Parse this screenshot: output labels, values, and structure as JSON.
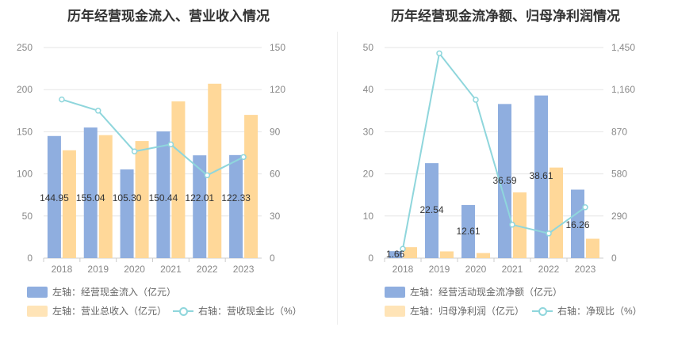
{
  "chart_data": [
    {
      "type": "bar",
      "title": "历年经营现金流入、营业收入情况",
      "categories": [
        "2018",
        "2019",
        "2020",
        "2021",
        "2022",
        "2023"
      ],
      "left_axis": {
        "ylim": [
          0,
          250
        ],
        "ticks": [
          "0",
          "50",
          "100",
          "150",
          "200",
          "250"
        ]
      },
      "right_axis": {
        "ylim": [
          0,
          150
        ],
        "ticks": [
          "0",
          "30",
          "60",
          "90",
          "120",
          "150"
        ]
      },
      "series": [
        {
          "name": "左轴：经营现金流入（亿元）",
          "axis": "left",
          "type": "bar",
          "color": "#8faedf",
          "values": [
            144.95,
            155.04,
            105.3,
            150.44,
            122.01,
            122.33
          ],
          "labels": [
            "144.95",
            "155.04",
            "105.30",
            "150.44",
            "122.01",
            "122.33"
          ]
        },
        {
          "name": "左轴：营业总收入（亿元）",
          "axis": "left",
          "type": "bar",
          "color": "#ffd899",
          "values": [
            128,
            146,
            139,
            186,
            207,
            170
          ]
        },
        {
          "name": "右轴：营收现金比（%）",
          "axis": "right",
          "type": "line",
          "color": "#8fd6dc",
          "values": [
            113,
            105,
            76,
            81,
            59,
            72
          ]
        }
      ],
      "grid": true,
      "legend_position": "bottom-left"
    },
    {
      "type": "bar",
      "title": "历年经营现金流净额、归母净利润情况",
      "categories": [
        "2018",
        "2019",
        "2020",
        "2021",
        "2022",
        "2023"
      ],
      "left_axis": {
        "ylim": [
          0,
          50
        ],
        "ticks": [
          "0",
          "10",
          "20",
          "30",
          "40",
          "50"
        ]
      },
      "right_axis": {
        "ylim": [
          0,
          1450
        ],
        "ticks": [
          "0",
          "290",
          "580",
          "870",
          "1,160",
          "1,450"
        ]
      },
      "series": [
        {
          "name": "左轴：经营活动现金流净额（亿元）",
          "axis": "left",
          "type": "bar",
          "color": "#8faedf",
          "values": [
            1.66,
            22.54,
            12.61,
            36.59,
            38.61,
            16.26
          ],
          "labels": [
            "1.66",
            "22.54",
            "12.61",
            "36.59",
            "38.61",
            "16.26"
          ]
        },
        {
          "name": "左轴：归母净利润（亿元）",
          "axis": "left",
          "type": "bar",
          "color": "#ffd899",
          "values": [
            2.6,
            1.6,
            1.2,
            15.6,
            21.5,
            4.6
          ]
        },
        {
          "name": "右轴：净现比（%）",
          "axis": "right",
          "type": "line",
          "color": "#8fd6dc",
          "values": [
            64,
            1410,
            1090,
            230,
            170,
            350
          ]
        }
      ],
      "grid": true,
      "legend_position": "bottom-left"
    }
  ]
}
